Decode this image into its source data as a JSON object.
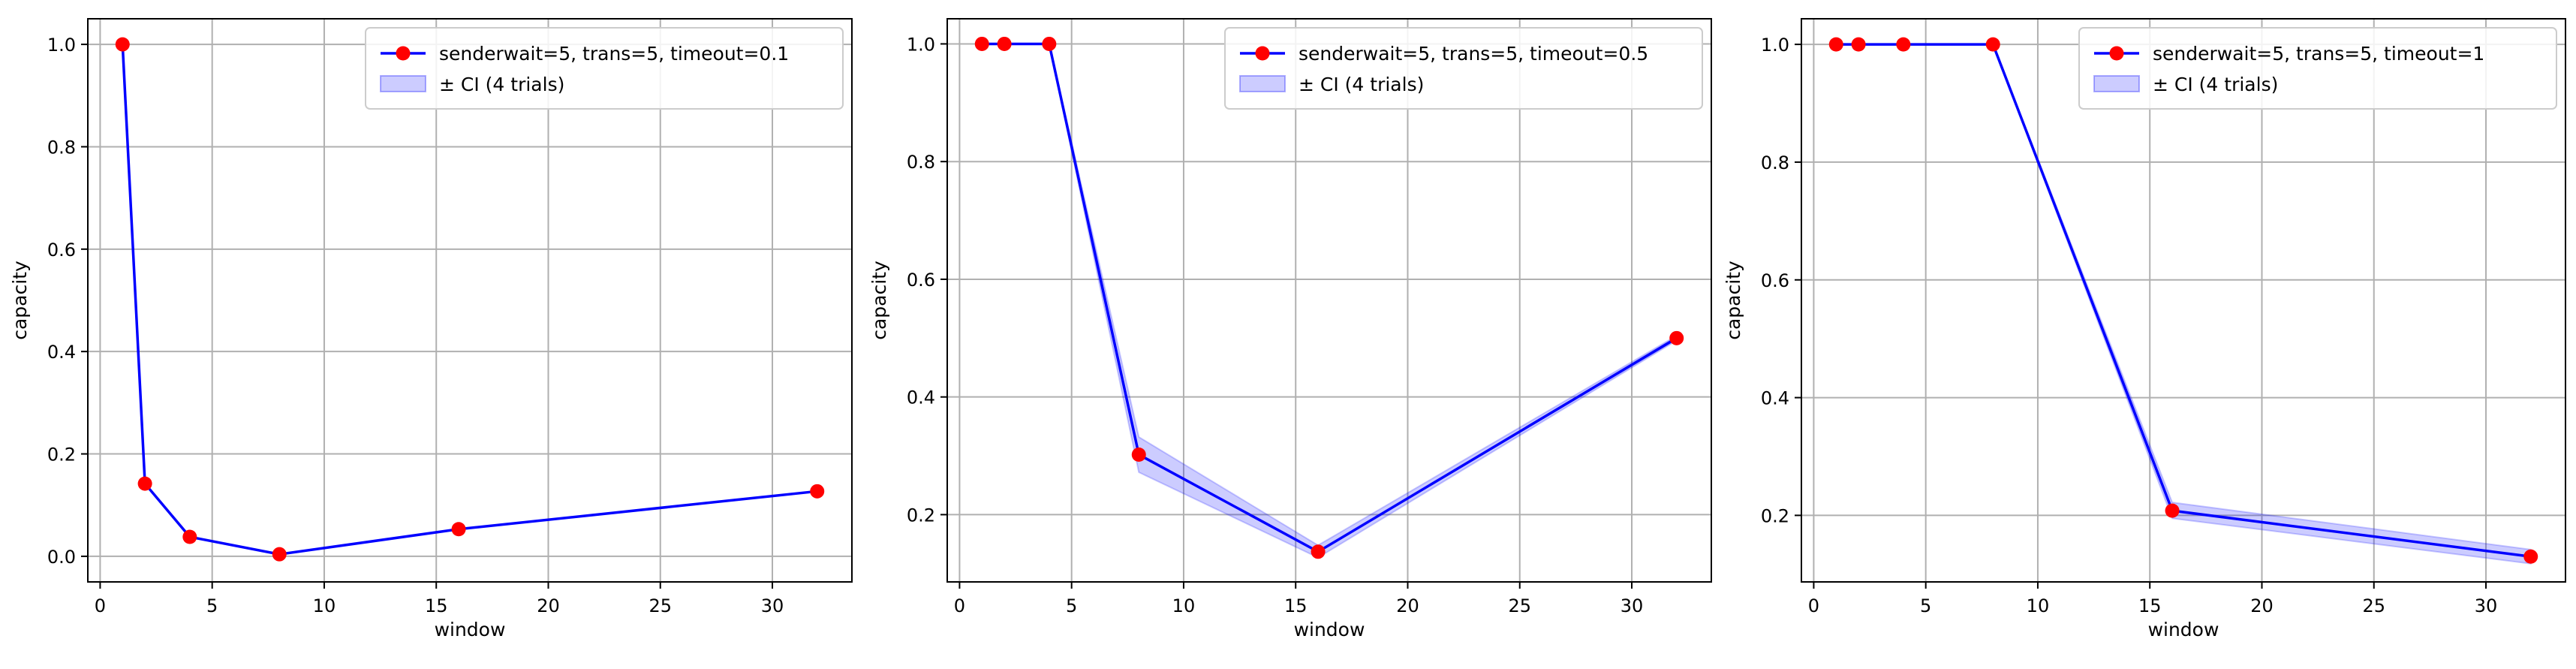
{
  "chart_data": [
    {
      "type": "line",
      "xlabel": "window",
      "ylabel": "capacity",
      "xlim": [
        -0.55,
        33.55
      ],
      "ylim": [
        -0.05,
        1.05
      ],
      "xticks": [
        0,
        5,
        10,
        15,
        20,
        25,
        30
      ],
      "yticks": [
        0.0,
        0.2,
        0.4,
        0.6,
        0.8,
        1.0
      ],
      "ytick_labels": [
        "0.0",
        "0.2",
        "0.4",
        "0.6",
        "0.8",
        "1.0"
      ],
      "grid": true,
      "legend_position": "top-right",
      "series": [
        {
          "name": "senderwait=5, trans=5, timeout=0.1",
          "x": [
            1,
            2,
            4,
            8,
            16,
            32
          ],
          "y": [
            1.0,
            0.142,
            0.038,
            0.004,
            0.053,
            0.127
          ],
          "ci_lower": [
            1.0,
            0.142,
            0.038,
            0.004,
            0.053,
            0.127
          ],
          "ci_upper": [
            1.0,
            0.142,
            0.038,
            0.004,
            0.053,
            0.127
          ]
        }
      ],
      "ci_label": "± CI (4 trials)"
    },
    {
      "type": "line",
      "xlabel": "window",
      "ylabel": "capacity",
      "xlim": [
        -0.55,
        33.55
      ],
      "ylim": [
        0.0857,
        1.0427
      ],
      "xticks": [
        0,
        5,
        10,
        15,
        20,
        25,
        30
      ],
      "yticks": [
        0.2,
        0.4,
        0.6,
        0.8,
        1.0
      ],
      "ytick_labels": [
        "0.2",
        "0.4",
        "0.6",
        "0.8",
        "1.0"
      ],
      "grid": true,
      "legend_position": "top-right",
      "series": [
        {
          "name": "senderwait=5, trans=5, timeout=0.5",
          "x": [
            1,
            2,
            4,
            8,
            16,
            32
          ],
          "y": [
            1.0,
            1.0,
            1.0,
            0.302,
            0.137,
            0.5
          ],
          "ci_lower": [
            1.0,
            1.0,
            1.0,
            0.272,
            0.127,
            0.496
          ],
          "ci_upper": [
            1.0,
            1.0,
            1.0,
            0.332,
            0.148,
            0.504
          ]
        }
      ],
      "ci_label": "± CI (4 trials)"
    },
    {
      "type": "line",
      "xlabel": "window",
      "ylabel": "capacity",
      "xlim": [
        -0.55,
        33.55
      ],
      "ylim": [
        0.087,
        1.0435
      ],
      "xticks": [
        0,
        5,
        10,
        15,
        20,
        25,
        30
      ],
      "yticks": [
        0.2,
        0.4,
        0.6,
        0.8,
        1.0
      ],
      "ytick_labels": [
        "0.2",
        "0.4",
        "0.6",
        "0.8",
        "1.0"
      ],
      "grid": true,
      "legend_position": "top-right",
      "series": [
        {
          "name": "senderwait=5, trans=5, timeout=1",
          "x": [
            1,
            2,
            4,
            8,
            16,
            32
          ],
          "y": [
            1.0,
            1.0,
            1.0,
            1.0,
            0.208,
            0.13
          ],
          "ci_lower": [
            1.0,
            1.0,
            1.0,
            1.0,
            0.195,
            0.118
          ],
          "ci_upper": [
            1.0,
            1.0,
            1.0,
            1.0,
            0.222,
            0.142
          ]
        }
      ],
      "ci_label": "± CI (4 trials)"
    }
  ],
  "colors": {
    "line": "#0000ff",
    "marker": "#ff0000",
    "ci_fill": "#0000ff",
    "grid": "#b0b0b0",
    "axis": "#000000"
  }
}
